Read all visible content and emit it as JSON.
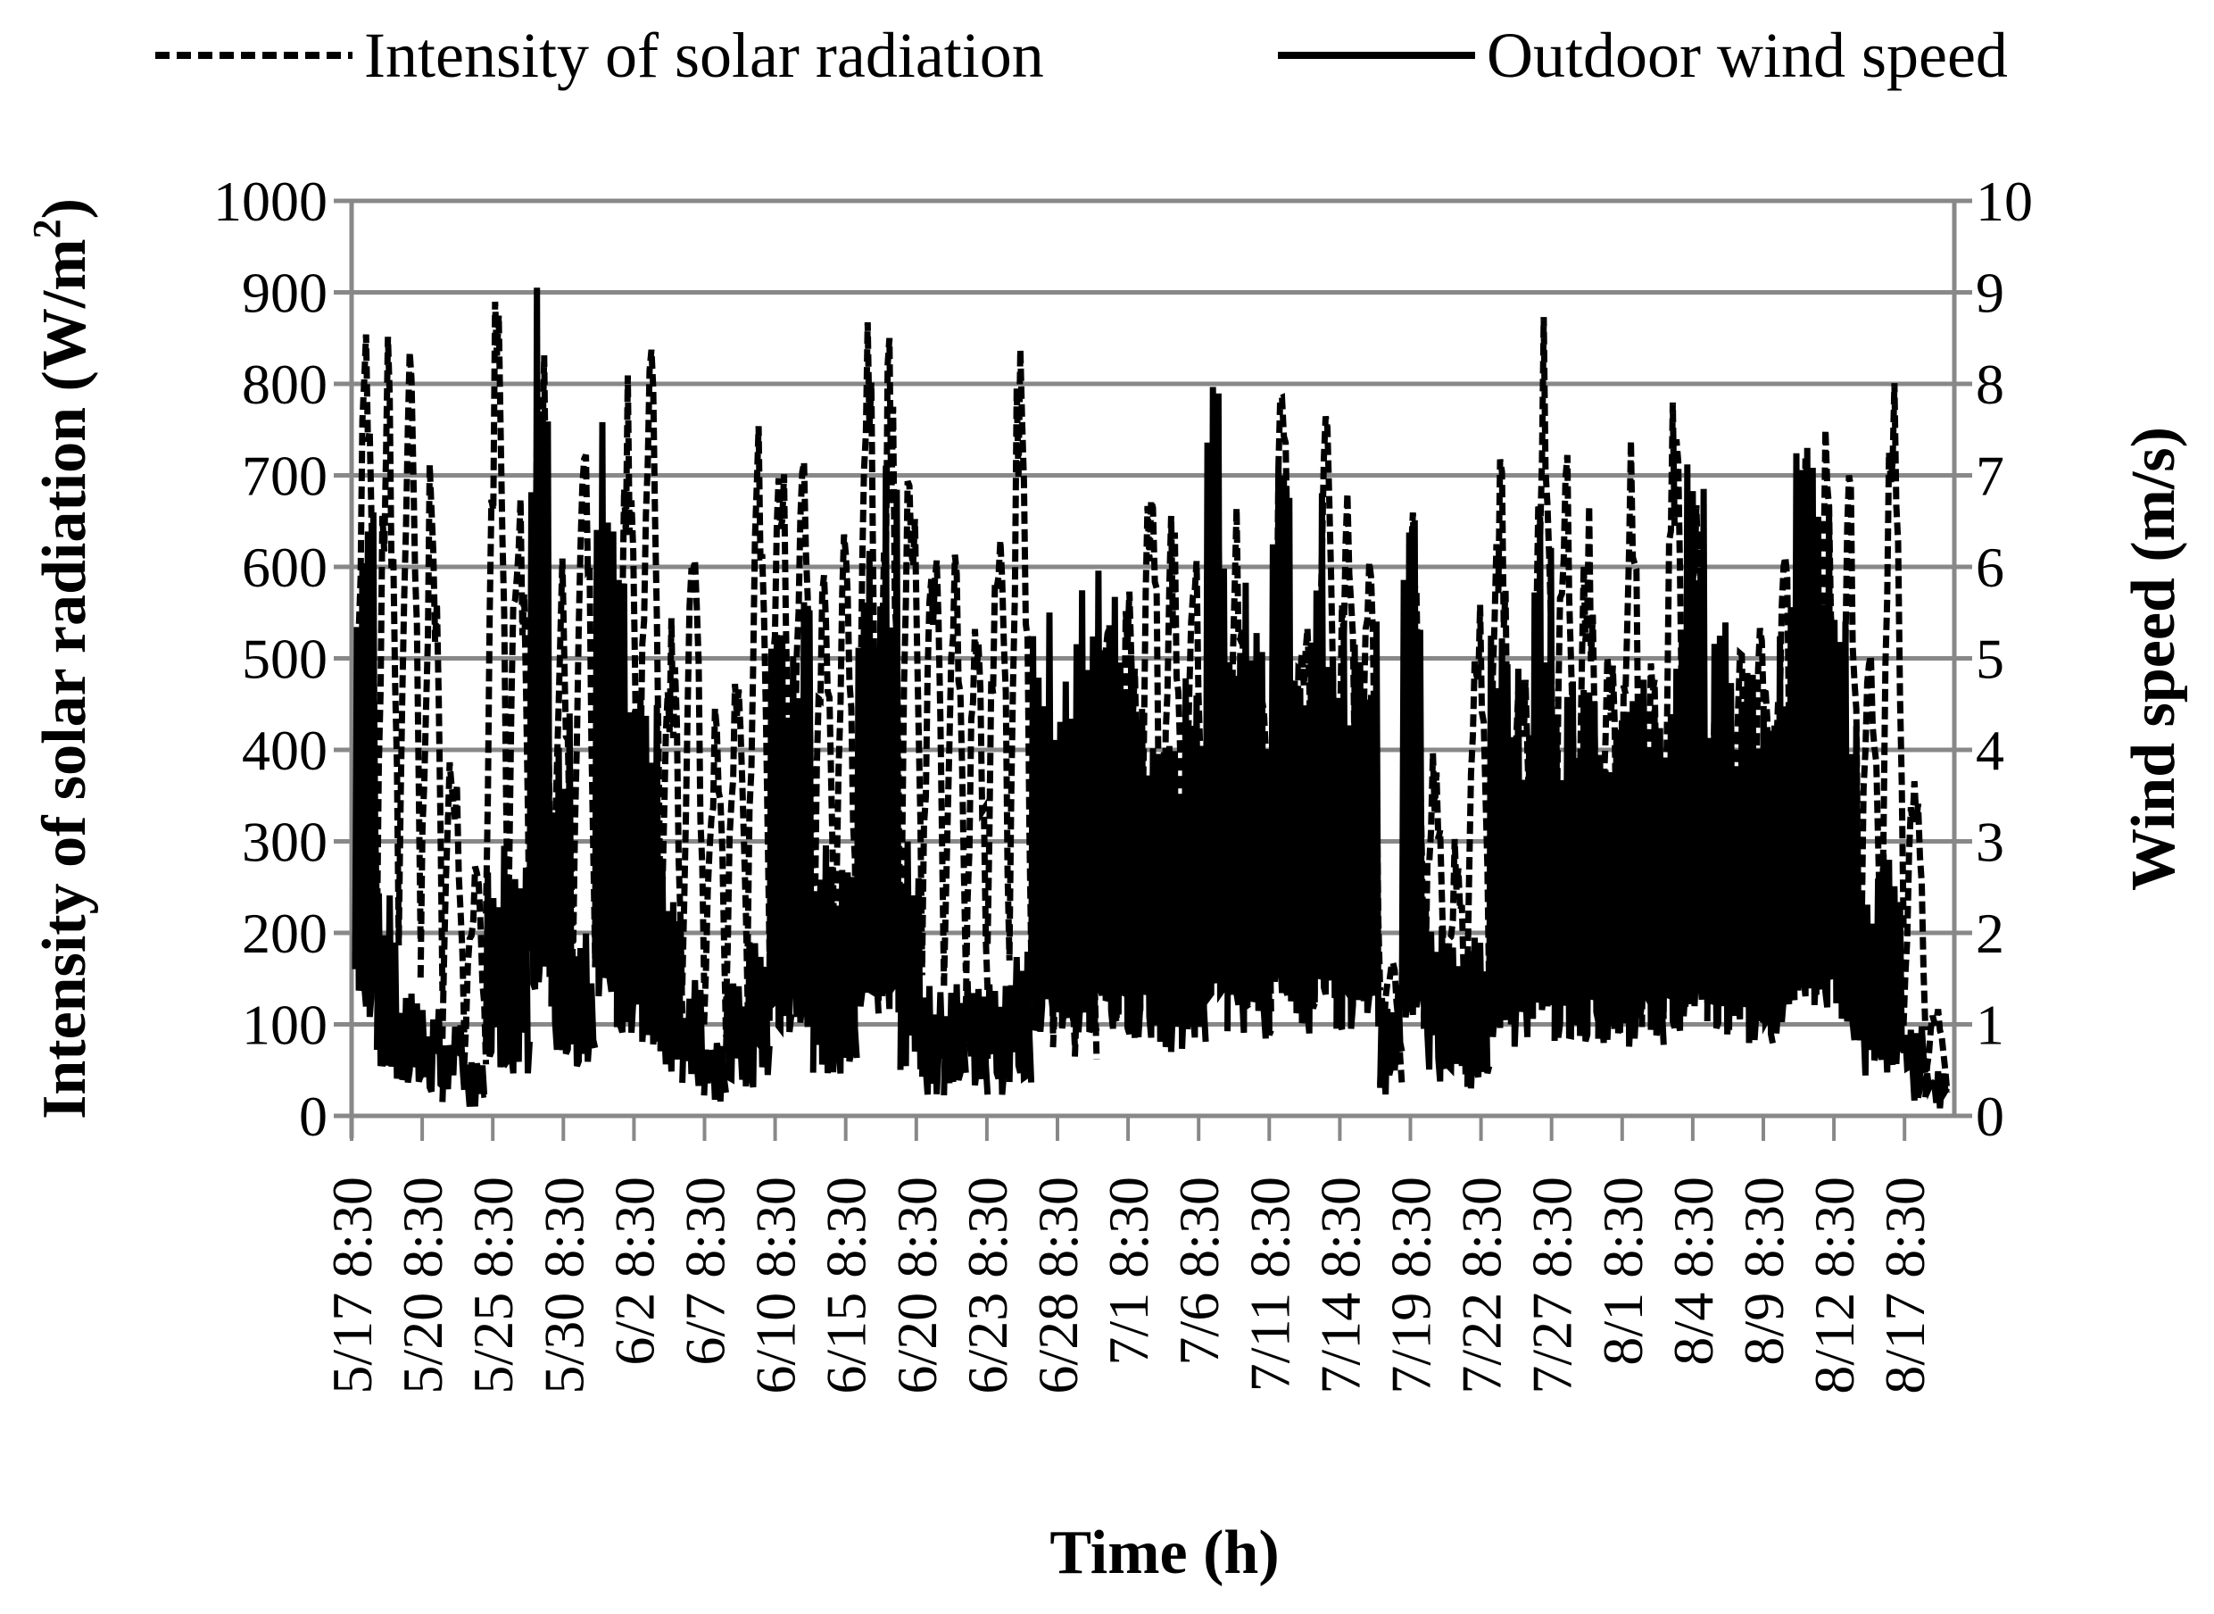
{
  "chart_data": {
    "type": "line",
    "legend_position": "top",
    "legend": [
      "Intensity of solar radiation",
      "Outdoor wind speed"
    ],
    "xlabel": "Time (h)",
    "ylabel_left": "Intensity of solar radiation (W/m²)",
    "ylabel_left_base": "Intensity of solar radiation (W/m",
    "ylabel_left_sup": "2",
    "ylabel_left_close": ")",
    "ylabel_right": "Wind speed (m/s)",
    "ylim_left": [
      0,
      1000
    ],
    "ylim_right": [
      0,
      10
    ],
    "yticks_left": [
      "0",
      "100",
      "200",
      "300",
      "400",
      "500",
      "600",
      "700",
      "800",
      "900",
      "1000"
    ],
    "yticks_right": [
      "0",
      "1",
      "2",
      "3",
      "4",
      "5",
      "6",
      "7",
      "8",
      "9",
      "10"
    ],
    "xticks": [
      "5/17 8:30",
      "5/20 8:30",
      "5/25 8:30",
      "5/30 8:30",
      "6/2 8:30",
      "6/7 8:30",
      "6/10 8:30",
      "6/15 8:30",
      "6/20 8:30",
      "6/23 8:30",
      "6/28 8:30",
      "7/1 8:30",
      "7/6 8:30",
      "7/11 8:30",
      "7/14 8:30",
      "7/19 8:30",
      "7/22 8:30",
      "7/27 8:30",
      "8/1 8:30",
      "8/4 8:30",
      "8/9 8:30",
      "8/12 8:30",
      "8/17 8:30"
    ],
    "grid": true,
    "series": [
      {
        "name": "Intensity of solar radiation",
        "axis": "left",
        "style": "dashed",
        "daily_peak_values": [
          895,
          865,
          855,
          730,
          440,
          280,
          915,
          755,
          920,
          610,
          770,
          660,
          820,
          900,
          550,
          660,
          460,
          500,
          780,
          800,
          780,
          620,
          655,
          890,
          860,
          780,
          700,
          660,
          560,
          765,
          905,
          460,
          350,
          330,
          600,
          630,
          760,
          680,
          640,
          800,
          700,
          590,
          815,
          620,
          865,
          710,
          620,
          180,
          680,
          440,
          310,
          630,
          760,
          530,
          915,
          790,
          700,
          550,
          775,
          510,
          835,
          720,
          550,
          530,
          560,
          650,
          745,
          775,
          730,
          580,
          835,
          400,
          130
        ]
      },
      {
        "name": "Outdoor wind speed",
        "axis": "right",
        "style": "solid",
        "daily_peak_values": [
          7,
          2.5,
          1.5,
          1.2,
          1,
          0.6,
          3,
          3,
          9.2,
          4.5,
          2,
          8.3,
          6,
          5,
          3,
          1.5,
          1,
          1.5,
          2,
          5.9,
          6,
          3,
          3,
          6.5,
          7.5,
          3,
          1.5,
          1.5,
          1.5,
          1.5,
          2,
          6,
          5,
          6,
          6.3,
          5.6,
          5.2,
          4.5,
          5,
          8,
          6,
          5.5,
          8.2,
          5.5,
          7,
          5.5,
          6,
          1.5,
          6.8,
          2.5,
          2,
          2,
          5.3,
          5,
          7,
          5,
          5,
          5,
          5,
          5,
          5.5,
          7.2,
          5.5,
          5,
          5,
          6,
          7.5,
          7.5,
          5.5,
          2.8,
          3,
          1,
          0.5
        ]
      }
    ]
  }
}
